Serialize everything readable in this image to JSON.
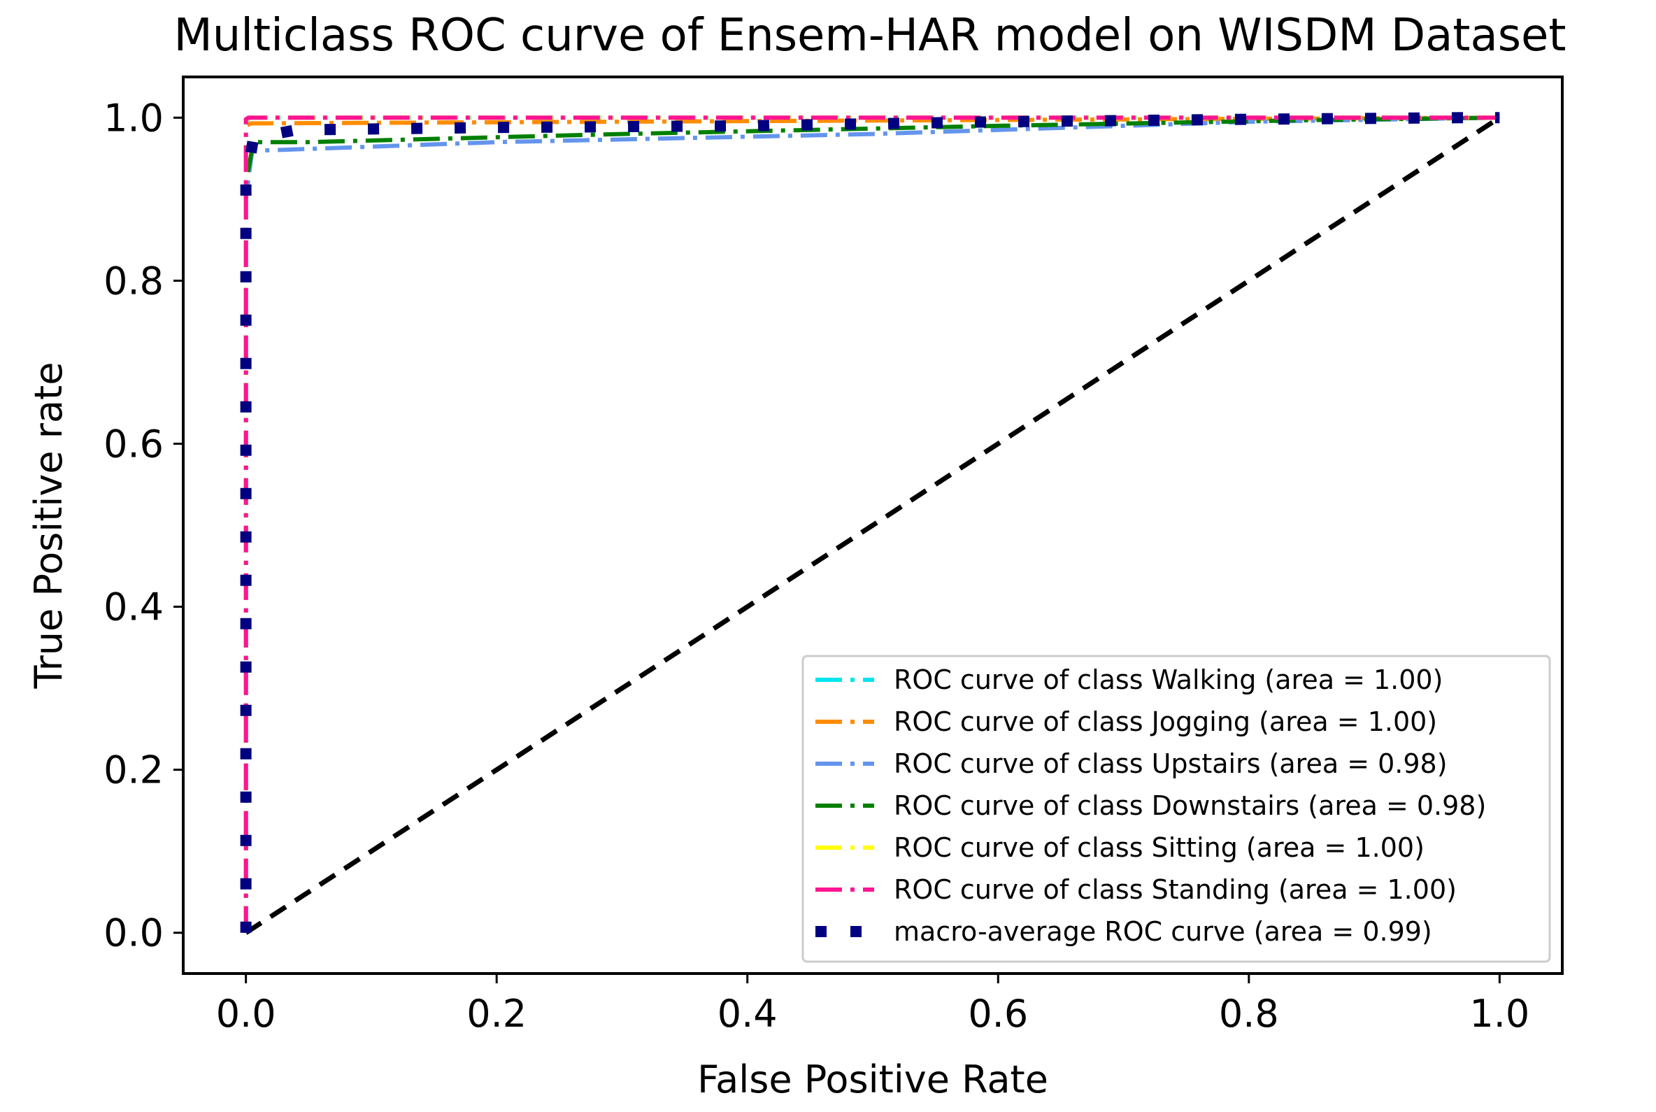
{
  "chart_data": {
    "type": "line",
    "title": "Multiclass ROC curve of Ensem-HAR model on WISDM Dataset",
    "xlabel": "False Positive Rate",
    "ylabel": "True Positive rate",
    "xlim": [
      -0.05,
      1.05
    ],
    "ylim": [
      -0.05,
      1.05
    ],
    "xticks": [
      0.0,
      0.2,
      0.4,
      0.6,
      0.8,
      1.0
    ],
    "yticks": [
      0.0,
      0.2,
      0.4,
      0.6,
      0.8,
      1.0
    ],
    "xtick_labels": [
      "0.0",
      "0.2",
      "0.4",
      "0.6",
      "0.8",
      "1.0"
    ],
    "ytick_labels": [
      "0.0",
      "0.2",
      "0.4",
      "0.6",
      "0.8",
      "1.0"
    ],
    "grid": false,
    "legend_position": "lower-right",
    "series": [
      {
        "name": "ROC curve of class Walking (area = 1.00)",
        "color": "#00e5ee",
        "style": "dashdot",
        "x": [
          0.0,
          0.0,
          0.003,
          1.0
        ],
        "y": [
          0.0,
          0.995,
          1.0,
          1.0
        ]
      },
      {
        "name": "ROC curve of class Jogging (area = 1.00)",
        "color": "#ff8c00",
        "style": "dashdot",
        "x": [
          0.0,
          0.0,
          0.004,
          1.0
        ],
        "y": [
          0.0,
          0.99,
          0.993,
          1.0
        ]
      },
      {
        "name": "ROC curve of class Upstairs (area = 0.98)",
        "color": "#6495ed",
        "style": "dashdot",
        "x": [
          0.0,
          0.0,
          0.005,
          0.02,
          0.2,
          0.5,
          0.8,
          1.0
        ],
        "y": [
          0.0,
          0.9,
          0.96,
          0.96,
          0.97,
          0.98,
          0.995,
          1.0
        ]
      },
      {
        "name": "ROC curve of class Downstairs (area = 0.98)",
        "color": "#008000",
        "style": "dashdot",
        "x": [
          0.0,
          0.0,
          0.006,
          0.05,
          0.3,
          0.6,
          0.85,
          1.0
        ],
        "y": [
          0.0,
          0.92,
          0.97,
          0.97,
          0.98,
          0.99,
          0.997,
          1.0
        ]
      },
      {
        "name": "ROC curve of class Sitting (area = 1.00)",
        "color": "#ffff00",
        "style": "dashdot",
        "x": [
          0.0,
          0.0,
          0.003,
          1.0
        ],
        "y": [
          0.0,
          0.997,
          1.0,
          1.0
        ]
      },
      {
        "name": "ROC curve of class Standing (area = 1.00)",
        "color": "#ff1493",
        "style": "dashdot",
        "x": [
          0.0,
          0.0,
          0.002,
          1.0
        ],
        "y": [
          0.0,
          0.998,
          1.0,
          1.0
        ]
      },
      {
        "name": "macro-average ROC curve (area = 0.99)",
        "color": "#000080",
        "style": "dotted",
        "x": [
          0.0,
          0.0,
          0.006,
          0.04,
          0.2,
          0.4,
          0.6,
          0.8,
          0.97,
          1.0
        ],
        "y": [
          0.0,
          0.92,
          0.975,
          0.985,
          0.988,
          0.99,
          0.995,
          0.998,
          1.0,
          1.0
        ]
      }
    ],
    "reference_line": {
      "color": "#000000",
      "style": "dashed",
      "x": [
        0.0,
        1.0
      ],
      "y": [
        0.0,
        1.0
      ]
    }
  }
}
